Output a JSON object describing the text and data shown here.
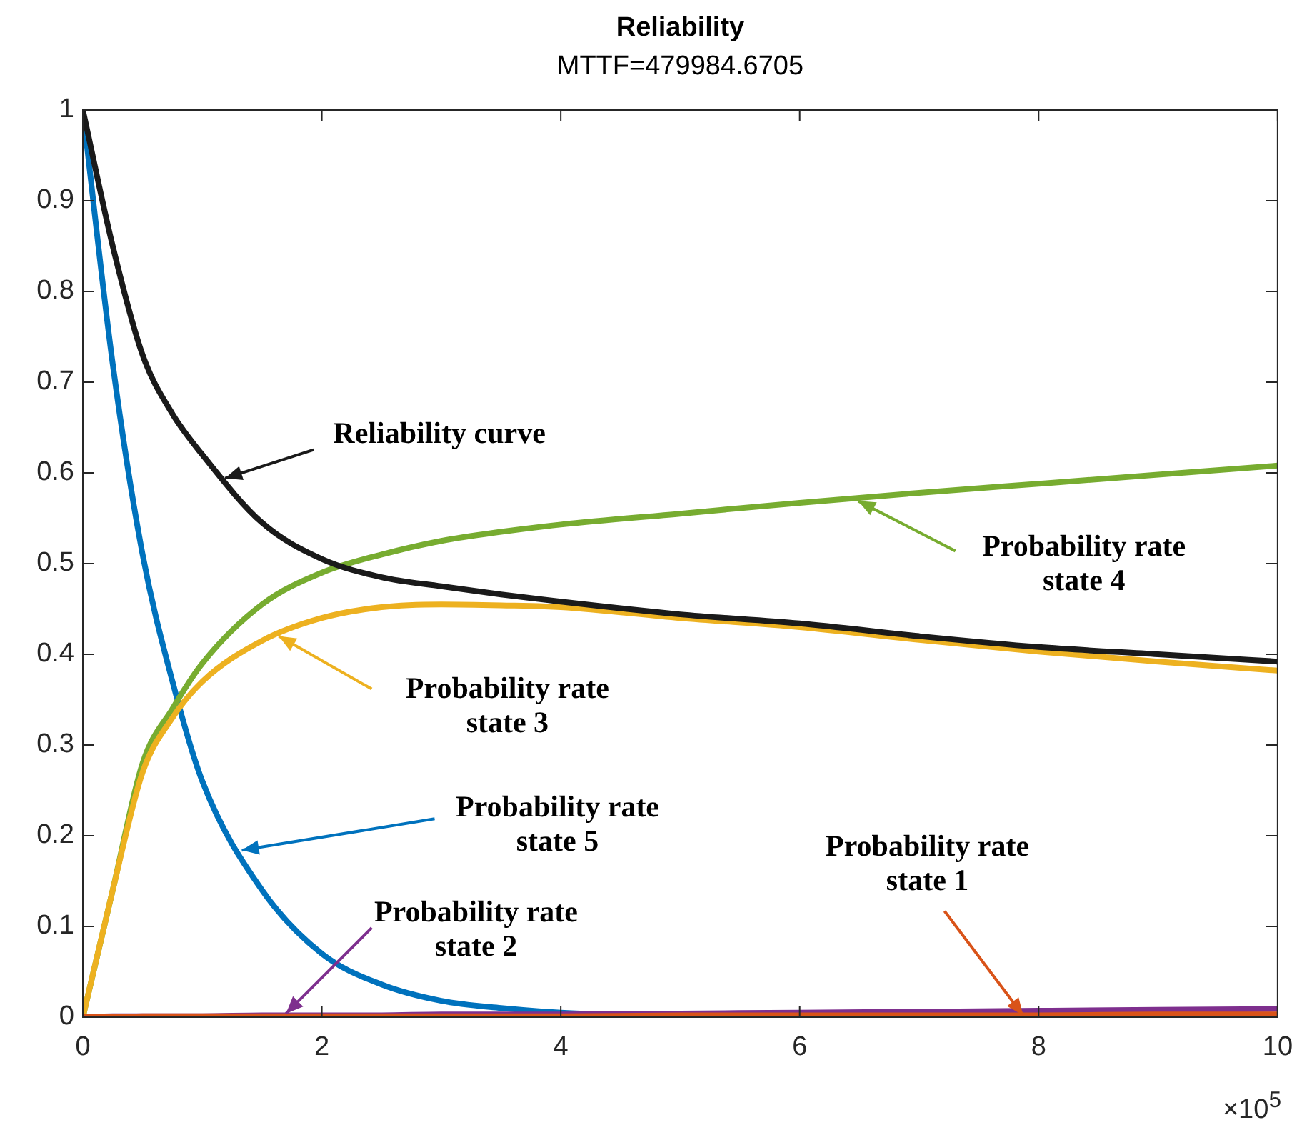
{
  "chart_data": {
    "type": "line",
    "title": "Reliability",
    "subtitle": "MTTF=479984.6705",
    "x": [
      0,
      0.25,
      0.5,
      0.75,
      1,
      1.5,
      2,
      2.5,
      3,
      3.5,
      4,
      5,
      6,
      7,
      8,
      9,
      10
    ],
    "series": [
      {
        "color": "#1a1a1a",
        "values": [
          1,
          0.85,
          0.73,
          0.665,
          0.62,
          0.545,
          0.505,
          0.485,
          0.475,
          0.466,
          0.458,
          0.444,
          0.434,
          0.42,
          0.408,
          0.4,
          0.392
        ]
      },
      {
        "color": "#d95319",
        "values": [
          0,
          0,
          0.001,
          0.001,
          0.001,
          0.001,
          0.001,
          0.001,
          0.001,
          0.001,
          0.001,
          0.002,
          0.002,
          0.002,
          0.002,
          0.003,
          0.003
        ]
      },
      {
        "color": "#7e2f8e",
        "values": [
          0,
          0.001,
          0.001,
          0.001,
          0.001,
          0.002,
          0.002,
          0.002,
          0.003,
          0.003,
          0.003,
          0.004,
          0.005,
          0.006,
          0.007,
          0.008,
          0.009
        ]
      },
      {
        "color": "#edb120",
        "values": [
          0,
          0.14,
          0.27,
          0.33,
          0.37,
          0.415,
          0.44,
          0.452,
          0.455,
          0.454,
          0.452,
          0.44,
          0.43,
          0.416,
          0.403,
          0.392,
          0.382
        ]
      },
      {
        "color": "#77ac30",
        "values": [
          0,
          0.14,
          0.28,
          0.34,
          0.39,
          0.455,
          0.49,
          0.51,
          0.525,
          0.535,
          0.543,
          0.555,
          0.567,
          0.578,
          0.588,
          0.598,
          0.608
        ]
      },
      {
        "color": "#0072bd",
        "values": [
          1,
          0.72,
          0.51,
          0.37,
          0.26,
          0.14,
          0.07,
          0.036,
          0.018,
          0.01,
          0.005,
          0.001,
          null,
          null,
          null,
          null,
          null
        ]
      }
    ],
    "xlim": [
      0,
      10
    ],
    "xticks": [
      0,
      2,
      4,
      6,
      8,
      10
    ],
    "ylim": [
      0,
      1
    ],
    "yticks": [
      0,
      0.1,
      0.2,
      0.3,
      0.4,
      0.5,
      0.6,
      0.7,
      0.8,
      0.9,
      1
    ],
    "marker": "none",
    "line_style": "solid",
    "legend": false,
    "annotations": [
      {
        "text": "Reliability curve",
        "x": 1.19,
        "y": 0.594
      },
      {
        "text": "Probability rate state 4",
        "x": 6.49,
        "y": 0.569
      },
      {
        "text": "Probability rate state 3",
        "x": 1.64,
        "y": 0.42
      },
      {
        "text": "Probability rate state 5",
        "x": 1.33,
        "y": 0.184
      },
      {
        "text": "Probability rate state 2",
        "x": 1.7,
        "y": 0.004
      },
      {
        "text": "Probability rate state 1",
        "x": 7.87,
        "y": 0.002
      },
      "×10$^{5}$"
    ]
  }
}
